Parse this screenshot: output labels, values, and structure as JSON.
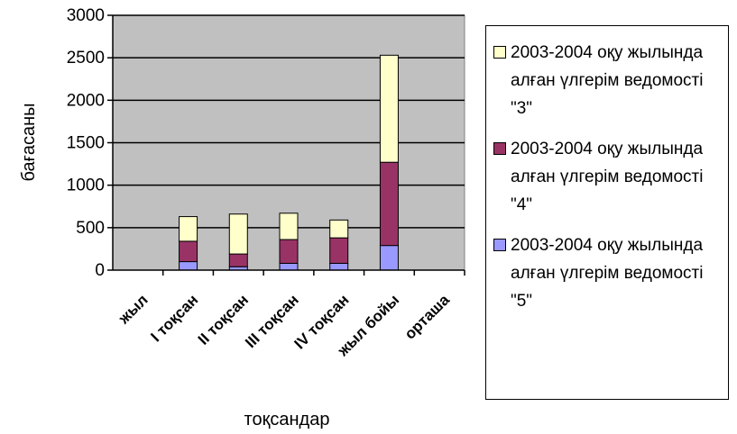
{
  "chart_data": {
    "type": "bar",
    "stacked": true,
    "categories": [
      "жыл",
      "I тоқсан",
      "II тоқсан",
      "III тоқсан",
      "IV тоқсан",
      "жыл бойы",
      "орташа"
    ],
    "series": [
      {
        "name": "2003-2004 оқу жылында алған үлгерім ведомості \"5\"",
        "values": [
          0,
          100,
          40,
          80,
          80,
          290,
          0
        ],
        "color": "#9999ff"
      },
      {
        "name": "2003-2004 оқу жылында алған үлгерім ведомості \"4\"",
        "values": [
          0,
          240,
          150,
          280,
          300,
          980,
          0
        ],
        "color": "#993366"
      },
      {
        "name": "2003-2004 оқу жылында алған үлгерім ведомості \"3\"",
        "values": [
          0,
          290,
          470,
          310,
          210,
          1260,
          0
        ],
        "color": "#ffffcc"
      }
    ],
    "yticks": [
      0,
      500,
      1000,
      1500,
      2000,
      2500,
      3000
    ],
    "ylim": [
      0,
      3000
    ],
    "xlabel": "тоқсандар",
    "ylabel": "бағасаны",
    "grid": true,
    "plot_background": "#c0c0c0",
    "legend_position": "right"
  }
}
